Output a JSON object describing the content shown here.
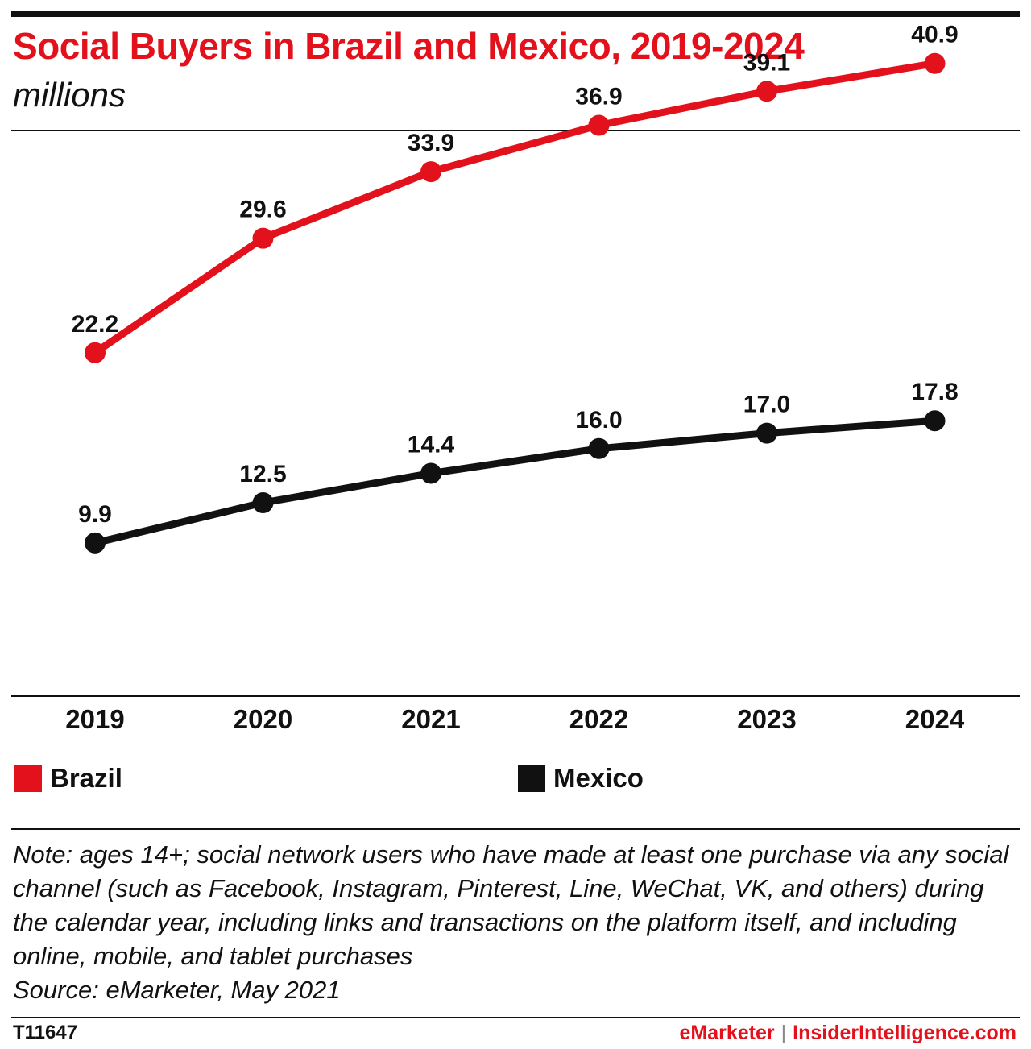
{
  "header": {
    "title": "Social Buyers in Brazil and Mexico, 2019-2024",
    "subtitle": "millions"
  },
  "chart_data": {
    "type": "line",
    "x": [
      "2019",
      "2020",
      "2021",
      "2022",
      "2023",
      "2024"
    ],
    "series": [
      {
        "name": "Brazil",
        "color": "#e3111b",
        "values": [
          22.2,
          29.6,
          33.9,
          36.9,
          39.1,
          40.9
        ],
        "labels": [
          "22.2",
          "29.6",
          "33.9",
          "36.9",
          "39.1",
          "40.9"
        ]
      },
      {
        "name": "Mexico",
        "color": "#111111",
        "values": [
          9.9,
          12.5,
          14.4,
          16.0,
          17.0,
          17.8
        ],
        "labels": [
          "9.9",
          "12.5",
          "14.4",
          "16.0",
          "17.0",
          "17.8"
        ]
      }
    ],
    "ylim": [
      0,
      50
    ],
    "grid": false,
    "legend_position": "bottom"
  },
  "note": {
    "text": "Note: ages 14+; social network users who have made at least one purchase via any social channel (such as Facebook, Instagram, Pinterest, Line, WeChat, VK, and others) during the calendar year, including links and transactions on the platform itself, and including online, mobile, and tablet purchases",
    "source": "Source: eMarketer, May 2021"
  },
  "footer": {
    "chart_id": "T11647",
    "brand_left": "eMarketer",
    "separator": "|",
    "brand_right": "InsiderIntelligence.com"
  }
}
